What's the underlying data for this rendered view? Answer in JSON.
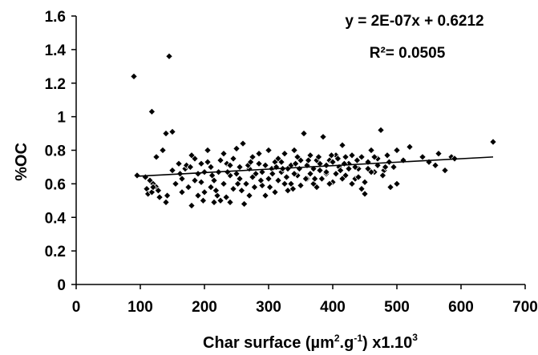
{
  "chart_data": {
    "type": "scatter",
    "title": "",
    "xlabel": "Char surface (µm².g-¹) x1.10³",
    "xlabel_parts": {
      "main": "Char surface (µm",
      "sup1": "2",
      "mid": ".g",
      "sup2": "-1",
      "end": ") x1.10",
      "sup3": "3"
    },
    "ylabel": "%OC",
    "xlim": [
      0,
      700
    ],
    "ylim": [
      0,
      1.6
    ],
    "x_ticks": [
      0,
      100,
      200,
      300,
      400,
      500,
      600,
      700
    ],
    "y_ticks": [
      0,
      0.2,
      0.4,
      0.6,
      0.8,
      1,
      1.2,
      1.4,
      1.6
    ],
    "x_tick_labels": [
      "0",
      "100",
      "200",
      "300",
      "400",
      "500",
      "600",
      "700"
    ],
    "y_tick_labels": [
      "0",
      "0.2",
      "0.4",
      "0.6",
      "0.8",
      "1",
      "1.2",
      "1.4",
      "1.6"
    ],
    "grid": false,
    "legend": "none",
    "marker": "diamond",
    "marker_color": "#000000",
    "equation": "y = 2E-07x + 0.6212",
    "r_squared": "R²= 0.0505",
    "trendline": {
      "x": [
        95,
        650
      ],
      "y": [
        0.645,
        0.76
      ]
    },
    "points": [
      [
        90,
        1.24
      ],
      [
        95,
        0.65
      ],
      [
        118,
        1.03
      ],
      [
        145,
        1.36
      ],
      [
        140,
        0.9
      ],
      [
        150,
        0.91
      ],
      [
        135,
        0.8
      ],
      [
        125,
        0.76
      ],
      [
        110,
        0.57
      ],
      [
        115,
        0.62
      ],
      [
        112,
        0.54
      ],
      [
        120,
        0.6
      ],
      [
        108,
        0.64
      ],
      [
        130,
        0.52
      ],
      [
        140,
        0.49
      ],
      [
        142,
        0.53
      ],
      [
        118,
        0.55
      ],
      [
        125,
        0.58
      ],
      [
        150,
        0.68
      ],
      [
        160,
        0.72
      ],
      [
        165,
        0.63
      ],
      [
        170,
        0.69
      ],
      [
        175,
        0.58
      ],
      [
        180,
        0.47
      ],
      [
        172,
        0.71
      ],
      [
        185,
        0.75
      ],
      [
        190,
        0.66
      ],
      [
        195,
        0.61
      ],
      [
        200,
        0.55
      ],
      [
        205,
        0.8
      ],
      [
        210,
        0.7
      ],
      [
        215,
        0.62
      ],
      [
        220,
        0.53
      ],
      [
        225,
        0.5
      ],
      [
        230,
        0.78
      ],
      [
        235,
        0.72
      ],
      [
        240,
        0.65
      ],
      [
        245,
        0.57
      ],
      [
        250,
        0.81
      ],
      [
        255,
        0.7
      ],
      [
        260,
        0.84
      ],
      [
        265,
        0.6
      ],
      [
        270,
        0.53
      ],
      [
        275,
        0.76
      ],
      [
        280,
        0.66
      ],
      [
        285,
        0.72
      ],
      [
        290,
        0.59
      ],
      [
        295,
        0.53
      ],
      [
        300,
        0.8
      ],
      [
        305,
        0.69
      ],
      [
        310,
        0.73
      ],
      [
        315,
        0.62
      ],
      [
        320,
        0.67
      ],
      [
        325,
        0.78
      ],
      [
        330,
        0.56
      ],
      [
        335,
        0.71
      ],
      [
        340,
        0.8
      ],
      [
        345,
        0.65
      ],
      [
        350,
        0.74
      ],
      [
        355,
        0.9
      ],
      [
        360,
        0.63
      ],
      [
        365,
        0.77
      ],
      [
        370,
        0.69
      ],
      [
        375,
        0.58
      ],
      [
        380,
        0.72
      ],
      [
        385,
        0.88
      ],
      [
        390,
        0.66
      ],
      [
        395,
        0.74
      ],
      [
        400,
        0.61
      ],
      [
        405,
        0.77
      ],
      [
        410,
        0.7
      ],
      [
        415,
        0.83
      ],
      [
        420,
        0.65
      ],
      [
        425,
        0.72
      ],
      [
        430,
        0.77
      ],
      [
        435,
        0.63
      ],
      [
        440,
        0.69
      ],
      [
        445,
        0.57
      ],
      [
        450,
        0.54
      ],
      [
        455,
        0.73
      ],
      [
        460,
        0.8
      ],
      [
        465,
        0.67
      ],
      [
        470,
        0.75
      ],
      [
        475,
        0.92
      ],
      [
        480,
        0.68
      ],
      [
        485,
        0.77
      ],
      [
        490,
        0.58
      ],
      [
        495,
        0.7
      ],
      [
        500,
        0.8
      ],
      [
        510,
        0.74
      ],
      [
        520,
        0.82
      ],
      [
        540,
        0.76
      ],
      [
        550,
        0.73
      ],
      [
        560,
        0.71
      ],
      [
        565,
        0.78
      ],
      [
        575,
        0.68
      ],
      [
        585,
        0.76
      ],
      [
        590,
        0.75
      ],
      [
        650,
        0.85
      ],
      [
        180,
        0.77
      ],
      [
        200,
        0.67
      ],
      [
        210,
        0.58
      ],
      [
        225,
        0.74
      ],
      [
        240,
        0.71
      ],
      [
        255,
        0.63
      ],
      [
        270,
        0.69
      ],
      [
        285,
        0.78
      ],
      [
        300,
        0.63
      ],
      [
        315,
        0.75
      ],
      [
        330,
        0.69
      ],
      [
        345,
        0.76
      ],
      [
        360,
        0.71
      ],
      [
        375,
        0.74
      ],
      [
        390,
        0.71
      ],
      [
        405,
        0.66
      ],
      [
        420,
        0.76
      ],
      [
        435,
        0.7
      ],
      [
        190,
        0.53
      ],
      [
        215,
        0.49
      ],
      [
        240,
        0.49
      ],
      [
        262,
        0.48
      ],
      [
        310,
        0.55
      ],
      [
        335,
        0.6
      ],
      [
        350,
        0.59
      ],
      [
        370,
        0.6
      ],
      [
        395,
        0.6
      ],
      [
        415,
        0.63
      ],
      [
        230,
        0.6
      ],
      [
        250,
        0.66
      ],
      [
        275,
        0.64
      ],
      [
        295,
        0.71
      ],
      [
        320,
        0.73
      ],
      [
        340,
        0.66
      ],
      [
        380,
        0.68
      ],
      [
        400,
        0.73
      ],
      [
        425,
        0.69
      ],
      [
        445,
        0.76
      ],
      [
        165,
        0.55
      ],
      [
        185,
        0.62
      ],
      [
        205,
        0.73
      ],
      [
        222,
        0.67
      ],
      [
        245,
        0.75
      ],
      [
        268,
        0.71
      ],
      [
        290,
        0.67
      ],
      [
        312,
        0.7
      ],
      [
        328,
        0.64
      ],
      [
        348,
        0.69
      ],
      [
        365,
        0.66
      ],
      [
        383,
        0.63
      ],
      [
        408,
        0.75
      ],
      [
        430,
        0.6
      ],
      [
        460,
        0.67
      ],
      [
        470,
        0.71
      ],
      [
        488,
        0.73
      ],
      [
        155,
        0.6
      ],
      [
        198,
        0.5
      ],
      [
        218,
        0.56
      ],
      [
        234,
        0.52
      ],
      [
        258,
        0.56
      ],
      [
        278,
        0.58
      ],
      [
        302,
        0.58
      ],
      [
        325,
        0.6
      ],
      [
        338,
        0.57
      ],
      [
        358,
        0.63
      ],
      [
        372,
        0.63
      ],
      [
        390,
        0.67
      ],
      [
        412,
        0.68
      ],
      [
        440,
        0.64
      ],
      [
        450,
        0.61
      ],
      [
        465,
        0.76
      ],
      [
        478,
        0.65
      ],
      [
        500,
        0.6
      ],
      [
        120,
        0.58
      ],
      [
        128,
        0.56
      ],
      [
        162,
        0.66
      ],
      [
        178,
        0.7
      ],
      [
        195,
        0.72
      ],
      [
        212,
        0.65
      ],
      [
        236,
        0.67
      ],
      [
        252,
        0.6
      ],
      [
        272,
        0.73
      ],
      [
        288,
        0.62
      ],
      [
        306,
        0.66
      ],
      [
        322,
        0.69
      ],
      [
        342,
        0.72
      ],
      [
        362,
        0.74
      ],
      [
        378,
        0.76
      ],
      [
        398,
        0.77
      ],
      [
        418,
        0.72
      ],
      [
        438,
        0.74
      ],
      [
        455,
        0.69
      ],
      [
        482,
        0.7
      ]
    ]
  }
}
